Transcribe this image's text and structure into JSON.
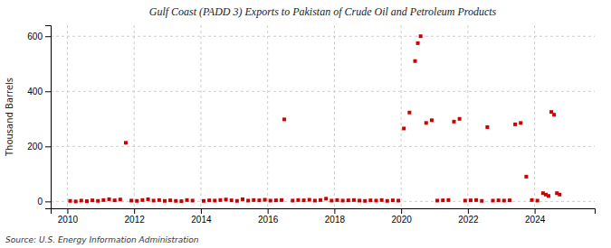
{
  "chart_data": {
    "type": "scatter",
    "title": "Gulf Coast (PADD 3) Exports to Pakistan of Crude Oil and Petroleum Products",
    "ylabel": "Thousand Barrels",
    "annotations": [
      "Source: U.S. Energy Information Administration"
    ],
    "color": "#cc0000",
    "marker": "square",
    "grid": true,
    "xlim": [
      2009.5,
      2025.8
    ],
    "ylim": [
      -25,
      640
    ],
    "xticks": [
      2010,
      2012,
      2014,
      2016,
      2018,
      2020,
      2022,
      2024
    ],
    "yticks": [
      0,
      200,
      400,
      600
    ],
    "x": [
      2010.083,
      2010.25,
      2010.417,
      2010.583,
      2010.75,
      2010.917,
      2011.083,
      2011.25,
      2011.417,
      2011.583,
      2011.75,
      2011.917,
      2012.083,
      2012.25,
      2012.417,
      2012.583,
      2012.75,
      2012.917,
      2013.083,
      2013.25,
      2013.417,
      2013.583,
      2013.75,
      2014.083,
      2014.25,
      2014.417,
      2014.583,
      2014.75,
      2014.917,
      2015.083,
      2015.25,
      2015.417,
      2015.583,
      2015.75,
      2015.917,
      2016.083,
      2016.25,
      2016.417,
      2016.5,
      2016.75,
      2016.917,
      2017.083,
      2017.25,
      2017.417,
      2017.583,
      2017.75,
      2017.917,
      2018.083,
      2018.25,
      2018.417,
      2018.583,
      2018.75,
      2018.917,
      2019.083,
      2019.25,
      2019.417,
      2019.583,
      2019.75,
      2019.917,
      2020.083,
      2020.25,
      2020.417,
      2020.5,
      2020.583,
      2020.75,
      2020.917,
      2021.083,
      2021.25,
      2021.417,
      2021.583,
      2021.75,
      2021.917,
      2022.083,
      2022.25,
      2022.417,
      2022.583,
      2022.75,
      2022.917,
      2023.083,
      2023.25,
      2023.417,
      2023.583,
      2023.75,
      2023.917,
      2024.083,
      2024.25,
      2024.333,
      2024.417,
      2024.5,
      2024.583,
      2024.667,
      2024.75
    ],
    "values": [
      2,
      0,
      3,
      1,
      4,
      2,
      5,
      8,
      4,
      7,
      213,
      3,
      2,
      5,
      8,
      3,
      5,
      2,
      4,
      2,
      1,
      5,
      3,
      2,
      4,
      3,
      5,
      7,
      4,
      2,
      8,
      3,
      5,
      4,
      6,
      3,
      4,
      5,
      298,
      3,
      5,
      4,
      6,
      3,
      5,
      10,
      3,
      5,
      3,
      4,
      5,
      3,
      2,
      4,
      3,
      5,
      2,
      4,
      3,
      265,
      323,
      510,
      575,
      600,
      285,
      295,
      3,
      4,
      5,
      290,
      300,
      3,
      4,
      5,
      2,
      270,
      3,
      4,
      3,
      4,
      280,
      285,
      90,
      5,
      3,
      30,
      25,
      20,
      325,
      315,
      30,
      25
    ]
  }
}
